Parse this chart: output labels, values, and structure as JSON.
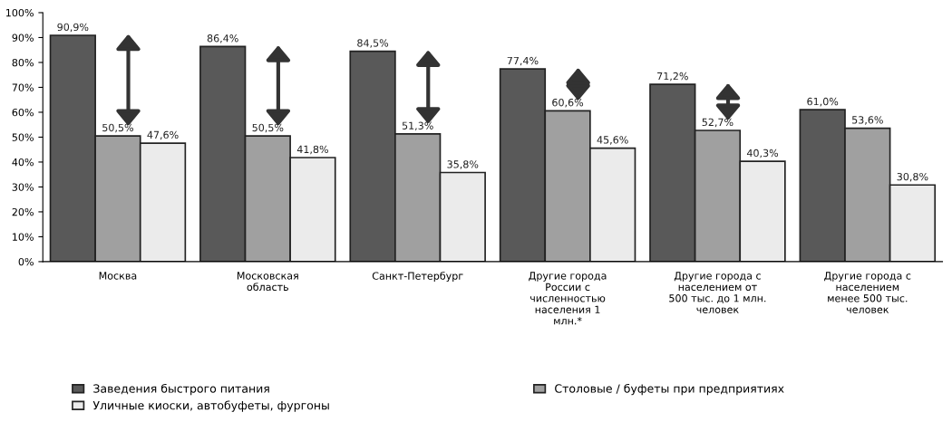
{
  "chart_data": {
    "type": "bar",
    "categories": [
      "Москва",
      "Московская\nобласть",
      "Санкт-Петербург",
      "Другие города\nРоссии с\nчисленностью\nнаселения 1\nмлн.*",
      "Другие города с\nнаселением от\n500 тыс. до 1 млн.\nчеловек",
      "Другие города с\nнаселением\nменее 500 тыс.\nчеловек"
    ],
    "series": [
      {
        "name": "Заведения быстрого питания",
        "color": "#595959",
        "values": [
          90.9,
          86.4,
          84.5,
          77.4,
          71.2,
          61.0
        ],
        "value_labels": [
          "90,9%",
          "86,4%",
          "84,5%",
          "77,4%",
          "71,2%",
          "61,0%"
        ]
      },
      {
        "name": "Столовые / буфеты при предприятиях",
        "color": "#a0a0a0",
        "values": [
          50.5,
          50.5,
          51.3,
          60.6,
          52.7,
          53.6
        ],
        "value_labels": [
          "50,5%",
          "50,5%",
          "51,3%",
          "60,6%",
          "52,7%",
          "53,6%"
        ]
      },
      {
        "name": "Уличные киоски, автобуфеты, фургоны",
        "color": "#ebebeb",
        "values": [
          47.6,
          41.8,
          35.8,
          45.6,
          40.3,
          30.8
        ],
        "value_labels": [
          "47,6%",
          "41,8%",
          "35,8%",
          "45,6%",
          "40,3%",
          "30,8%"
        ]
      }
    ],
    "ylim": [
      0,
      100
    ],
    "yticks": [
      {
        "value": 0,
        "label": "0%"
      },
      {
        "value": 10,
        "label": "10%"
      },
      {
        "value": 20,
        "label": "20%"
      },
      {
        "value": 30,
        "label": "30%"
      },
      {
        "value": 40,
        "label": "40%"
      },
      {
        "value": 50,
        "label": "50%"
      },
      {
        "value": 60,
        "label": "60%"
      },
      {
        "value": 70,
        "label": "70%"
      },
      {
        "value": 80,
        "label": "80%"
      },
      {
        "value": 90,
        "label": "90%"
      },
      {
        "value": 100,
        "label": "100%"
      }
    ],
    "grid": false,
    "legend": "bottom"
  }
}
